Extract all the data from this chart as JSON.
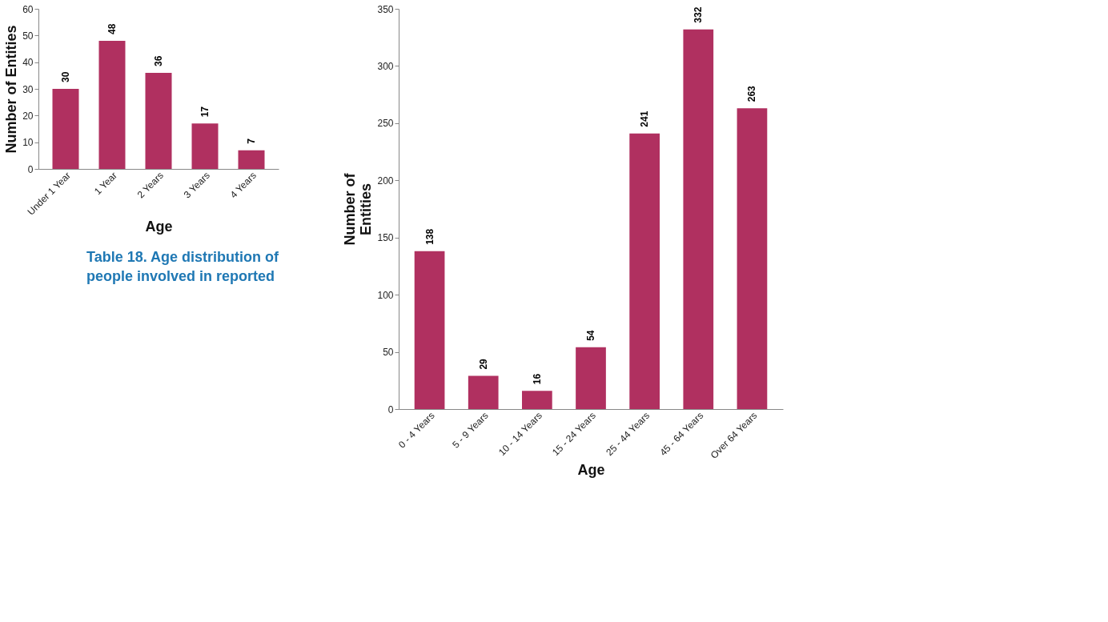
{
  "chart_data": [
    {
      "type": "bar",
      "categories": [
        "Under 1 Year",
        "1 Year",
        "2 Years",
        "3 Years",
        "4 Years"
      ],
      "values": [
        30,
        48,
        36,
        17,
        7
      ],
      "color": "#b03060",
      "xlabel": "Age",
      "ylabel": "Number of Entities",
      "ylim": [
        0,
        60
      ],
      "yticks": [
        0,
        10,
        20,
        30,
        40,
        50,
        60
      ],
      "data_labels": true,
      "grid": false,
      "annotations": [
        "Table 18. Age distribution of people involved in reported"
      ]
    },
    {
      "type": "bar",
      "categories": [
        "0 - 4 Years",
        "5 - 9 Years",
        "10 - 14 Years",
        "15 - 24 Years",
        "25 - 44 Years",
        "45 - 64 Years",
        "Over 64 Years"
      ],
      "values": [
        138,
        29,
        16,
        54,
        241,
        332,
        263
      ],
      "color": "#b03060",
      "xlabel": "Age",
      "ylabel": "Number of Entities",
      "ylim": [
        0,
        350
      ],
      "yticks": [
        0,
        50,
        100,
        150,
        200,
        250,
        300,
        350
      ],
      "data_labels": true,
      "grid": false
    }
  ]
}
